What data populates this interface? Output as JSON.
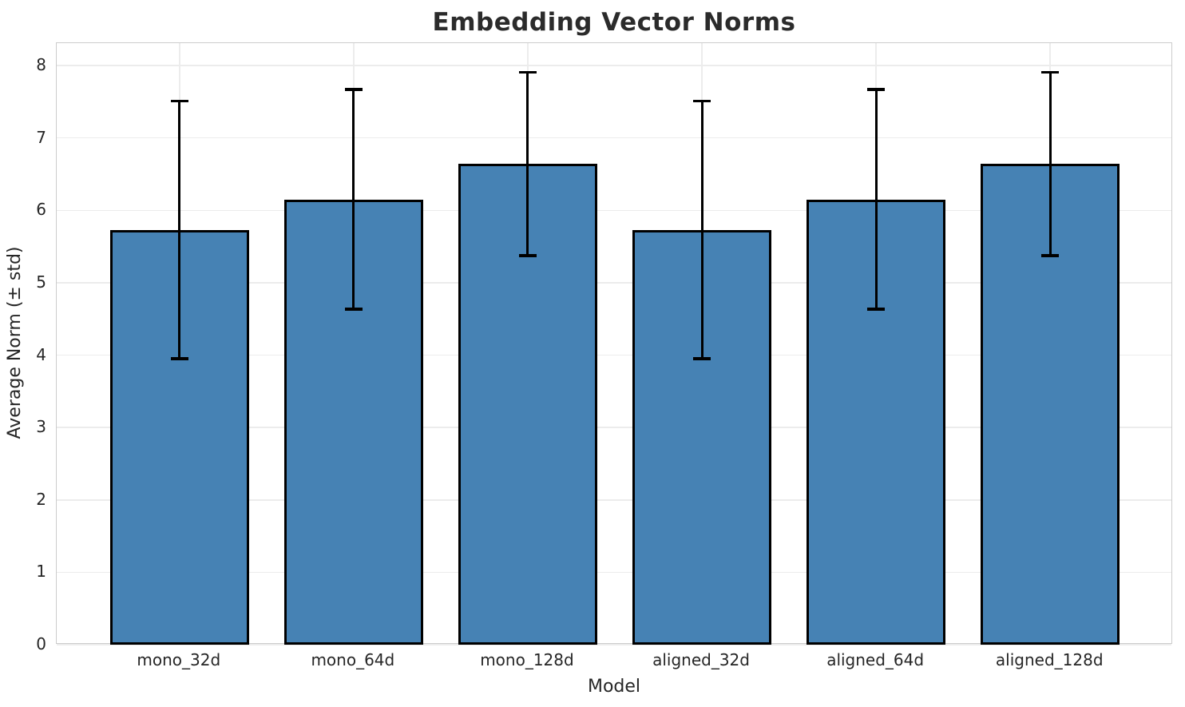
{
  "figure": {
    "title": "Embedding Vector Norms",
    "xlabel": "Model",
    "ylabel": "Average Norm (± std)"
  },
  "chart_data": {
    "type": "bar",
    "title": "Embedding Vector Norms",
    "xlabel": "Model",
    "ylabel": "Average Norm (± std)",
    "categories": [
      "mono_32d",
      "mono_64d",
      "mono_128d",
      "aligned_32d",
      "aligned_64d",
      "aligned_128d"
    ],
    "values": [
      5.73,
      6.15,
      6.64,
      5.73,
      6.15,
      6.64
    ],
    "errors": [
      1.78,
      1.52,
      1.27,
      1.78,
      1.52,
      1.27
    ],
    "error_bar_meaning": "± std",
    "yticks": [
      0,
      1,
      2,
      3,
      4,
      5,
      6,
      7,
      8
    ],
    "ylim": [
      0,
      8.31
    ],
    "xlim_pad": 0.705,
    "bar_width": 0.8,
    "grid": true,
    "legend": false,
    "colors": {
      "bar_fill": "#4682b4",
      "bar_edge": "#000000",
      "error_bar": "#000000",
      "grid": "#ececec",
      "spine": "#cccccc",
      "text": "#262626"
    }
  }
}
